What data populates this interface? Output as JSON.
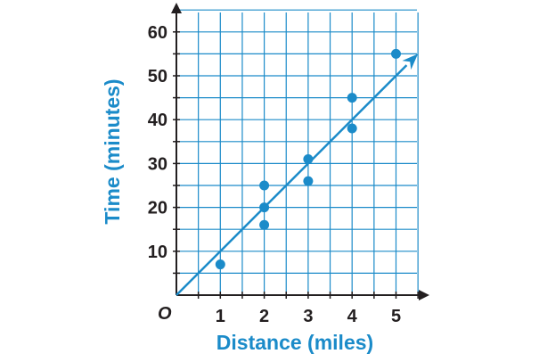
{
  "chart_data": {
    "type": "scatter",
    "xlabel": "Distance (miles)",
    "ylabel": "Time (minutes)",
    "origin_label": "O",
    "xlim": [
      0,
      5.5
    ],
    "ylim": [
      0,
      65
    ],
    "x_ticks": [
      1,
      2,
      3,
      4,
      5
    ],
    "y_ticks": [
      10,
      20,
      30,
      40,
      50,
      60
    ],
    "grid": true,
    "grid_step_x": 0.5,
    "grid_step_y": 5,
    "series": [
      {
        "points": [
          {
            "x": 1,
            "y": 7
          },
          {
            "x": 2,
            "y": 16
          },
          {
            "x": 2,
            "y": 20
          },
          {
            "x": 2,
            "y": 25
          },
          {
            "x": 3,
            "y": 26
          },
          {
            "x": 3,
            "y": 31
          },
          {
            "x": 4,
            "y": 38
          },
          {
            "x": 4,
            "y": 45
          },
          {
            "x": 5,
            "y": 55
          }
        ]
      }
    ],
    "trend_line": {
      "x0": 0,
      "y0": 0,
      "x1": 5.5,
      "y1": 55
    },
    "colors": {
      "accent": "#1b8bc9",
      "grid": "#1b8bc9",
      "axis": "#231f20",
      "label": "#1b8bc9"
    }
  }
}
